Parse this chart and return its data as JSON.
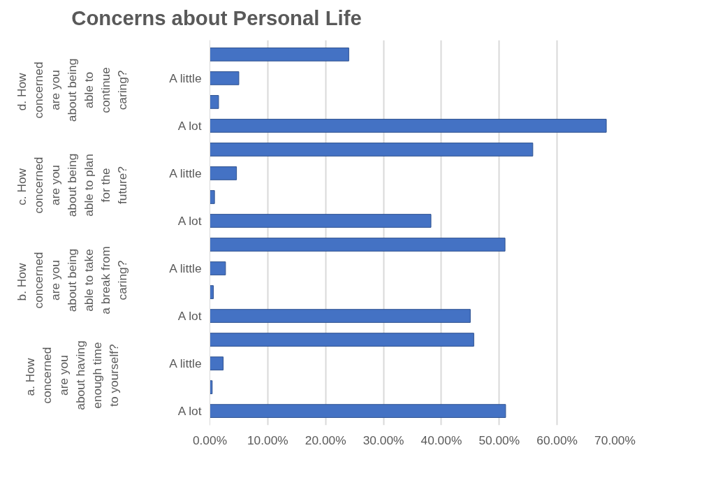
{
  "chart_data": {
    "type": "bar",
    "orientation": "horizontal",
    "title": "Concerns about Personal Life",
    "categories": [
      null,
      "A little",
      null,
      "A lot",
      null,
      "A little",
      null,
      "A lot",
      null,
      "A little",
      null,
      "A lot",
      null,
      "A little",
      null,
      "A lot"
    ],
    "values": [
      24,
      5,
      1.5,
      68.5,
      55.8,
      4.6,
      0.8,
      38.2,
      51,
      2.7,
      0.6,
      45,
      45.6,
      2.3,
      0.4,
      51.1
    ],
    "color": "#4472c4",
    "annotations": [
      "d.  How concerned are you about being able to continue caring?",
      "c.  How concerned are you about being able to plan for the future?",
      "b.  How concerned are you about being able to take a break from caring?",
      "a.  How concerned are you about having enough time to yourself?"
    ],
    "xlim": [
      0,
      70
    ],
    "xticks": [
      {
        "value": 0,
        "label": "0.00%"
      },
      {
        "value": 10,
        "label": "10.00%"
      },
      {
        "value": 20,
        "label": "20.00%"
      },
      {
        "value": 30,
        "label": "30.00%"
      },
      {
        "value": 40,
        "label": "40.00%"
      },
      {
        "value": 50,
        "label": "50.00%"
      },
      {
        "value": 60,
        "label": "60.00%"
      },
      {
        "value": 70,
        "label": "70.00%"
      }
    ],
    "grid": "x"
  }
}
